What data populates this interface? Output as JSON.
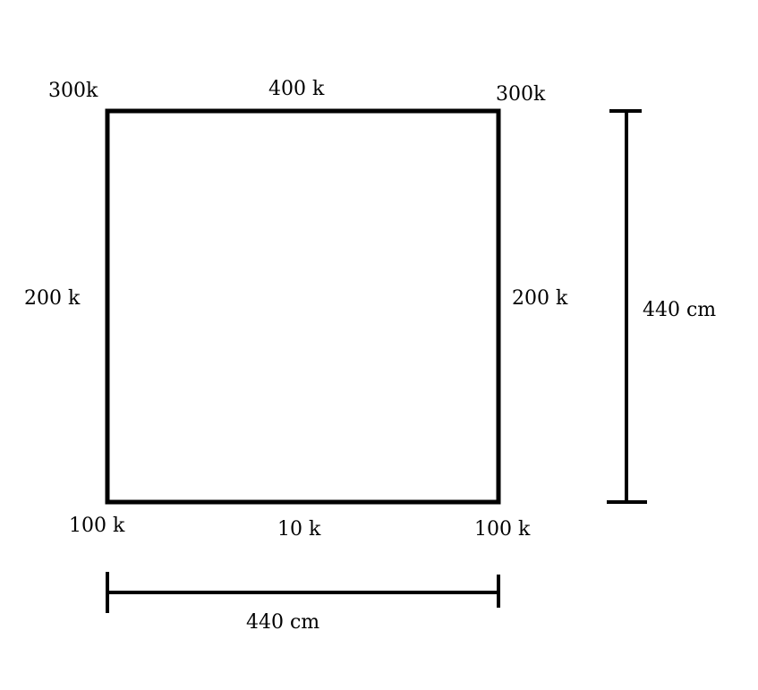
{
  "square": {
    "corners": {
      "top_left": "300k",
      "top_right": "300k",
      "bottom_left": "100 k",
      "bottom_right": "100 k"
    },
    "edges": {
      "top": "400 k",
      "left": "200 k",
      "right": "200 k",
      "bottom": "10 k"
    }
  },
  "dimensions": {
    "width": "440 cm",
    "height": "440 cm"
  },
  "colors": {
    "line": "#000000",
    "background": "#ffffff"
  }
}
